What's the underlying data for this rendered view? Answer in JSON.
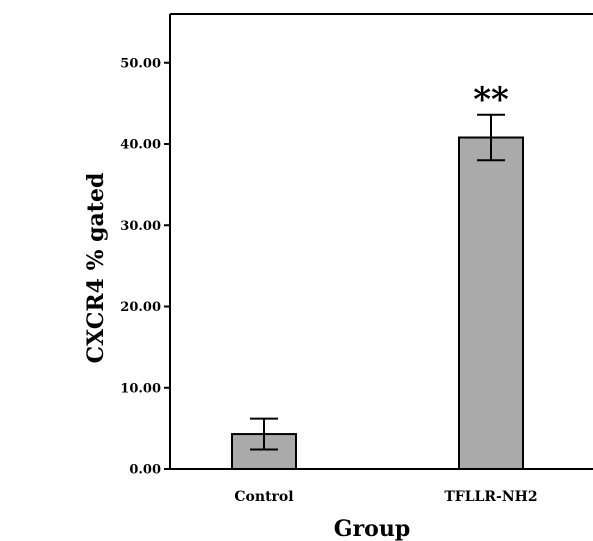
{
  "chart_data": {
    "type": "bar",
    "title": "",
    "xlabel": "Group",
    "ylabel": "CXCR4 % gated",
    "categories": [
      "Control",
      "TFLLR-NH2"
    ],
    "values": [
      4.3,
      40.8
    ],
    "errors": [
      1.9,
      2.8
    ],
    "annotations": [
      "",
      "**"
    ],
    "ylim": [
      0,
      56
    ],
    "yticks": [
      "0.00",
      "10.00",
      "20.00",
      "30.00",
      "40.00",
      "50.00"
    ],
    "ytick_values": [
      0,
      10,
      20,
      30,
      40,
      50
    ],
    "grid": false,
    "bar_color": "#aaaaaa"
  }
}
